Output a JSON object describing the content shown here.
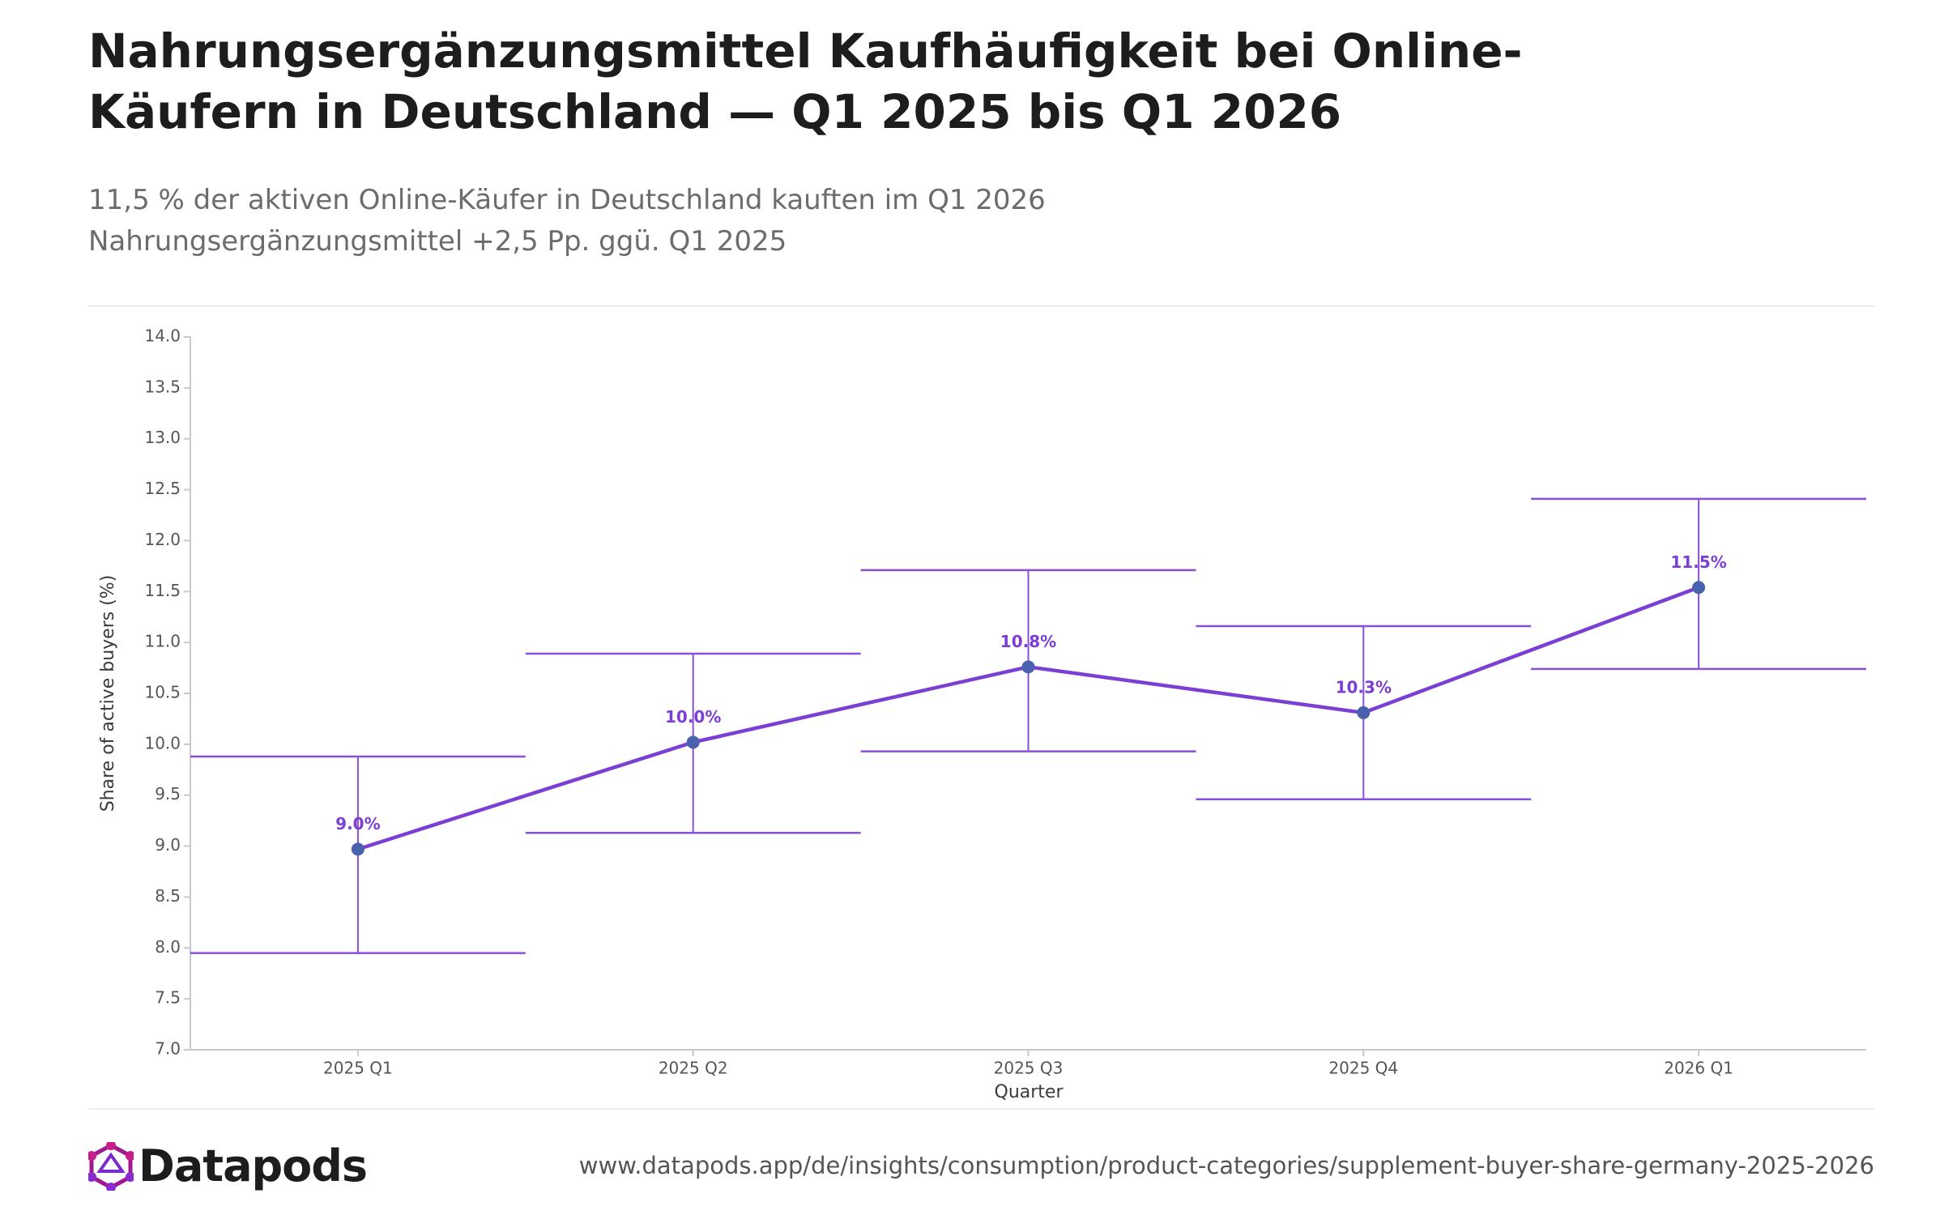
{
  "chart_data": {
    "type": "line",
    "title": "Nahrungsergänzungsmittel Kaufhäufigkeit bei Online-Käufern in Deutschland — Q1 2025 bis Q1 2026",
    "subtitle": "11,5 % der aktiven Online-Käufer in Deutschland kauften im Q1 2026 Nahrungsergänzungsmittel +2,5 Pp. ggü. Q1 2025",
    "x_label": "Quarter",
    "y_label": "Share of active buyers (%)",
    "categories": [
      "2025 Q1",
      "2025 Q2",
      "2025 Q3",
      "2025 Q4",
      "2026 Q1"
    ],
    "values": [
      8.97,
      10.02,
      10.76,
      10.31,
      11.54
    ],
    "value_labels": [
      "9.0%",
      "10.0%",
      "10.8%",
      "10.3%",
      "11.5%"
    ],
    "error_lower": [
      7.95,
      9.13,
      9.93,
      9.46,
      10.74
    ],
    "error_upper": [
      9.88,
      10.89,
      11.71,
      11.16,
      12.41
    ],
    "line_color": "#7b3fd4",
    "marker_color": "#4a62ad",
    "error_color": "#8a4fd8",
    "label_color": "#7b3fd4",
    "ylim": [
      7,
      14
    ],
    "yticks": [
      {
        "value": 7,
        "label": "7.0"
      },
      {
        "value": 7.5,
        "label": "7.5"
      },
      {
        "value": 8,
        "label": "8.0"
      },
      {
        "value": 8.5,
        "label": "8.5"
      },
      {
        "value": 9,
        "label": "9.0"
      },
      {
        "value": 9.5,
        "label": "9.5"
      },
      {
        "value": 10,
        "label": "10.0"
      },
      {
        "value": 10.5,
        "label": "10.5"
      },
      {
        "value": 11,
        "label": "11.0"
      },
      {
        "value": 11.5,
        "label": "11.5"
      },
      {
        "value": 12,
        "label": "12.0"
      },
      {
        "value": 12.5,
        "label": "12.5"
      },
      {
        "value": 13,
        "label": "13.0"
      },
      {
        "value": 13.5,
        "label": "13.5"
      },
      {
        "value": 14,
        "label": "14.0"
      }
    ],
    "grid": false
  },
  "footer": {
    "brand": "Datapods",
    "url": "www.datapods.app/de/insights/consumption/product-categories/supplement-buyer-share-germany-2025-2026"
  }
}
